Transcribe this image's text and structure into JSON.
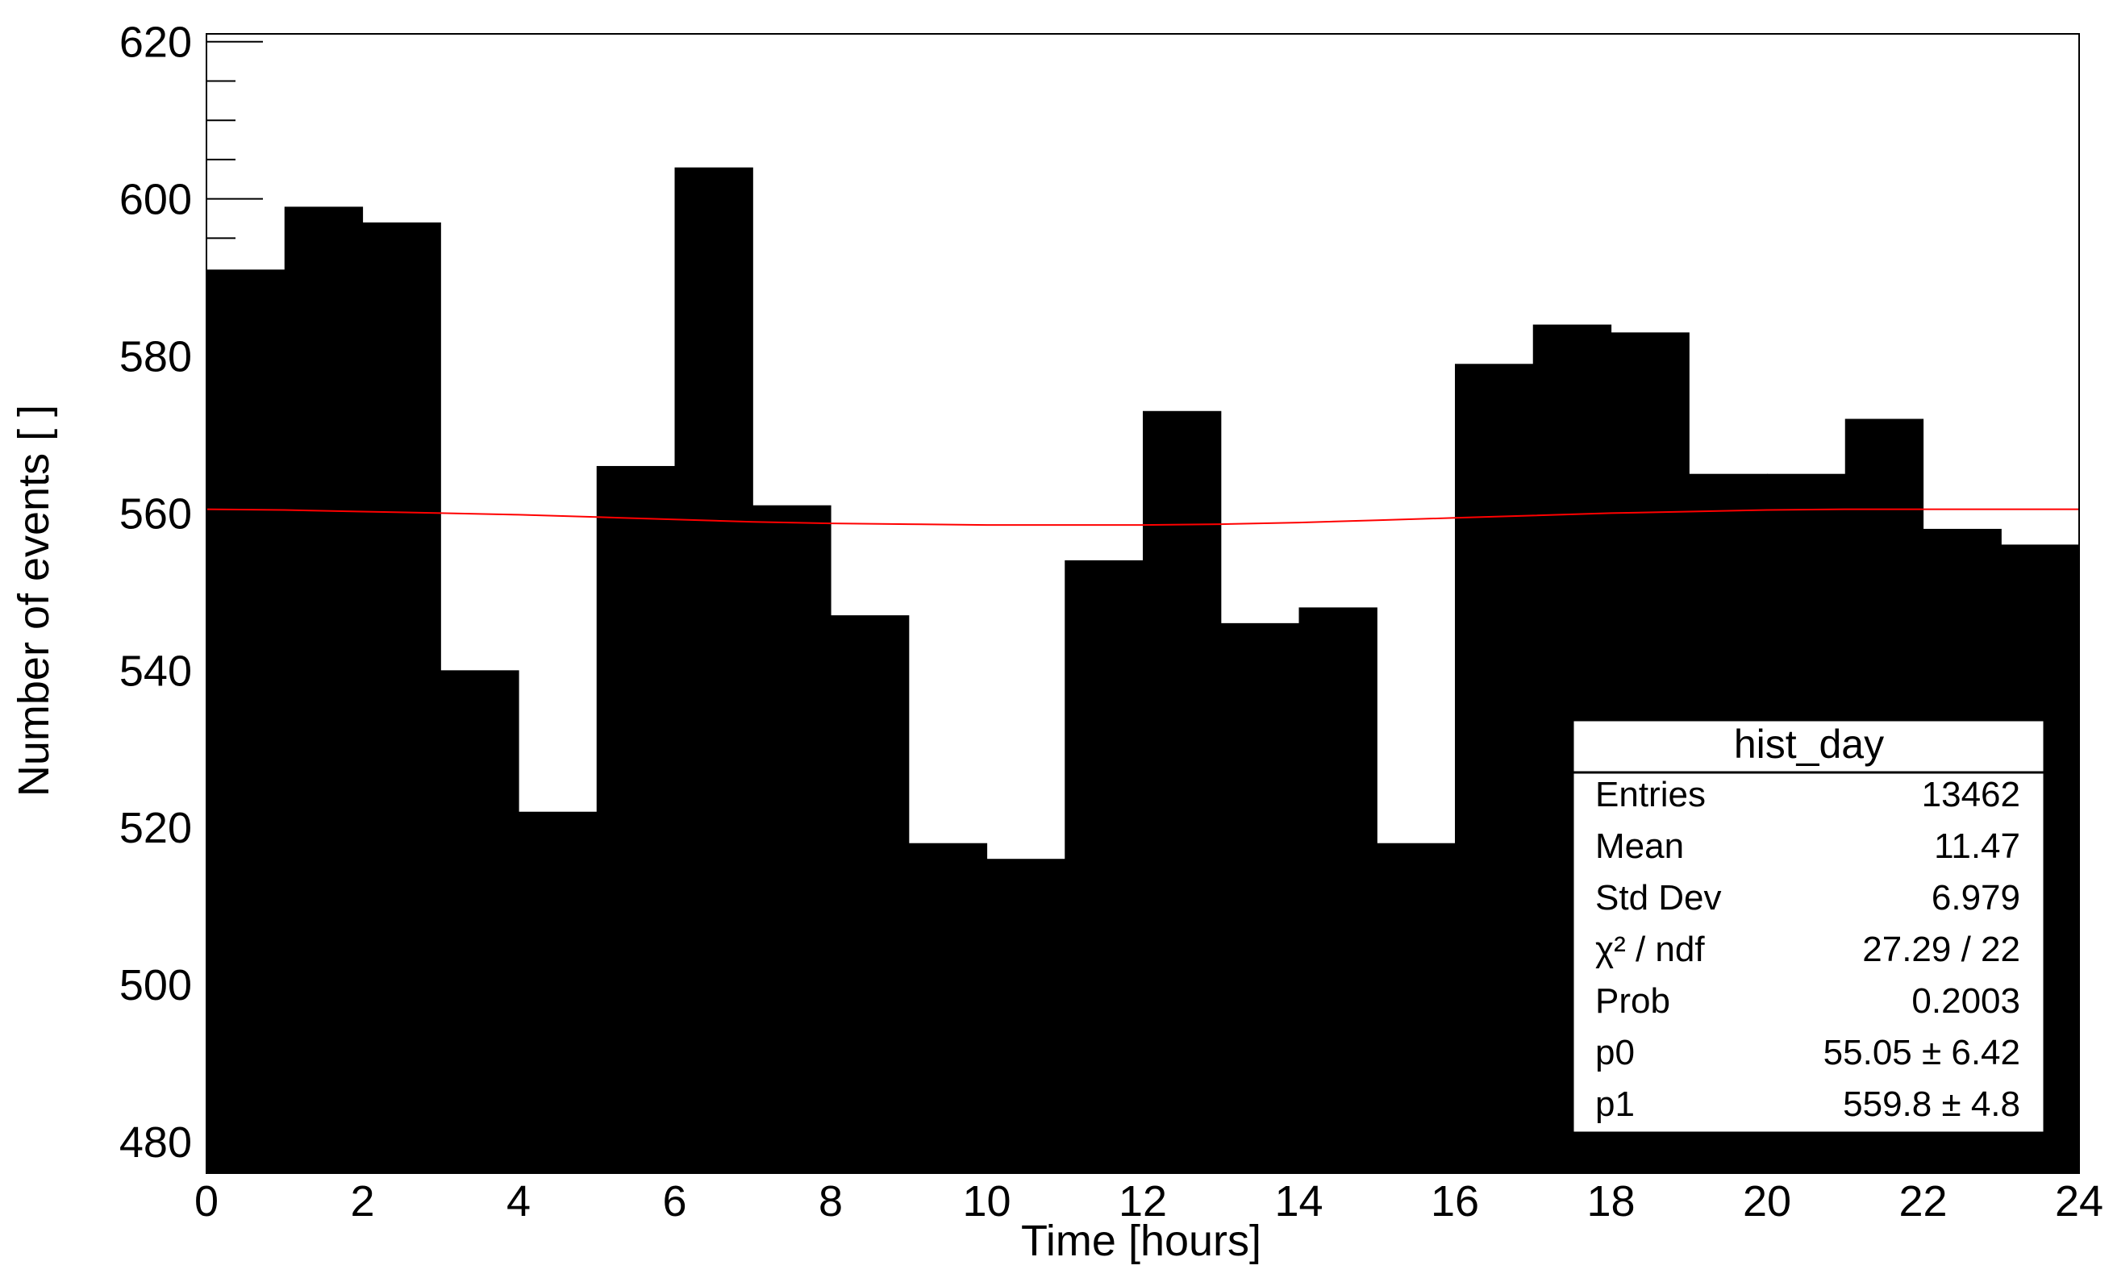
{
  "chart_data": {
    "type": "bar",
    "title": "",
    "xlabel": "Time [hours]",
    "ylabel": "Number of events [ ]",
    "xlim": [
      0,
      24
    ],
    "ylim": [
      476,
      621
    ],
    "x_ticks": [
      "0",
      "2",
      "4",
      "6",
      "8",
      "10",
      "12",
      "14",
      "16",
      "18",
      "20",
      "22",
      "24"
    ],
    "y_ticks": [
      "480",
      "500",
      "520",
      "540",
      "560",
      "580",
      "600",
      "620"
    ],
    "bin_width": 1,
    "bin_edges": [
      0,
      1,
      2,
      3,
      4,
      5,
      6,
      7,
      8,
      9,
      10,
      11,
      12,
      13,
      14,
      15,
      16,
      17,
      18,
      19,
      20,
      21,
      22,
      23,
      24
    ],
    "series": [
      {
        "values": [
          591,
          599,
          597,
          540,
          522,
          566,
          604,
          561,
          547,
          518,
          516,
          554,
          573,
          546,
          548,
          518,
          579,
          584,
          583,
          565,
          565,
          572,
          558,
          556
        ],
        "color": "#000000"
      },
      {
        "type": "line",
        "x": [
          0,
          1,
          2,
          3,
          4,
          5,
          6,
          7,
          8,
          9,
          10,
          11,
          12,
          13,
          14,
          15,
          16,
          17,
          18,
          19,
          20,
          21,
          22,
          23,
          24
        ],
        "values": [
          560.5,
          560.4,
          560.2,
          560.0,
          559.8,
          559.5,
          559.2,
          558.9,
          558.7,
          558.6,
          558.5,
          558.5,
          558.5,
          558.6,
          558.8,
          559.1,
          559.4,
          559.7,
          560.0,
          560.2,
          560.4,
          560.5,
          560.5,
          560.5,
          560.5
        ],
        "color": "#ff0000"
      }
    ],
    "legend": "none",
    "grid": false
  },
  "stats_box": {
    "title": "hist_day",
    "rows": [
      {
        "label": "Entries",
        "value": "13462"
      },
      {
        "label": "Mean",
        "value": "11.47"
      },
      {
        "label": "Std Dev",
        "value": "6.979"
      },
      {
        "label": "χ² / ndf",
        "value": "27.29 / 22"
      },
      {
        "label": "Prob",
        "value": "0.2003"
      },
      {
        "label": "p0",
        "value": "55.05 ± 6.42"
      },
      {
        "label": "p1",
        "value": "559.8 ± 4.8"
      }
    ],
    "placement": "bottom-right"
  }
}
